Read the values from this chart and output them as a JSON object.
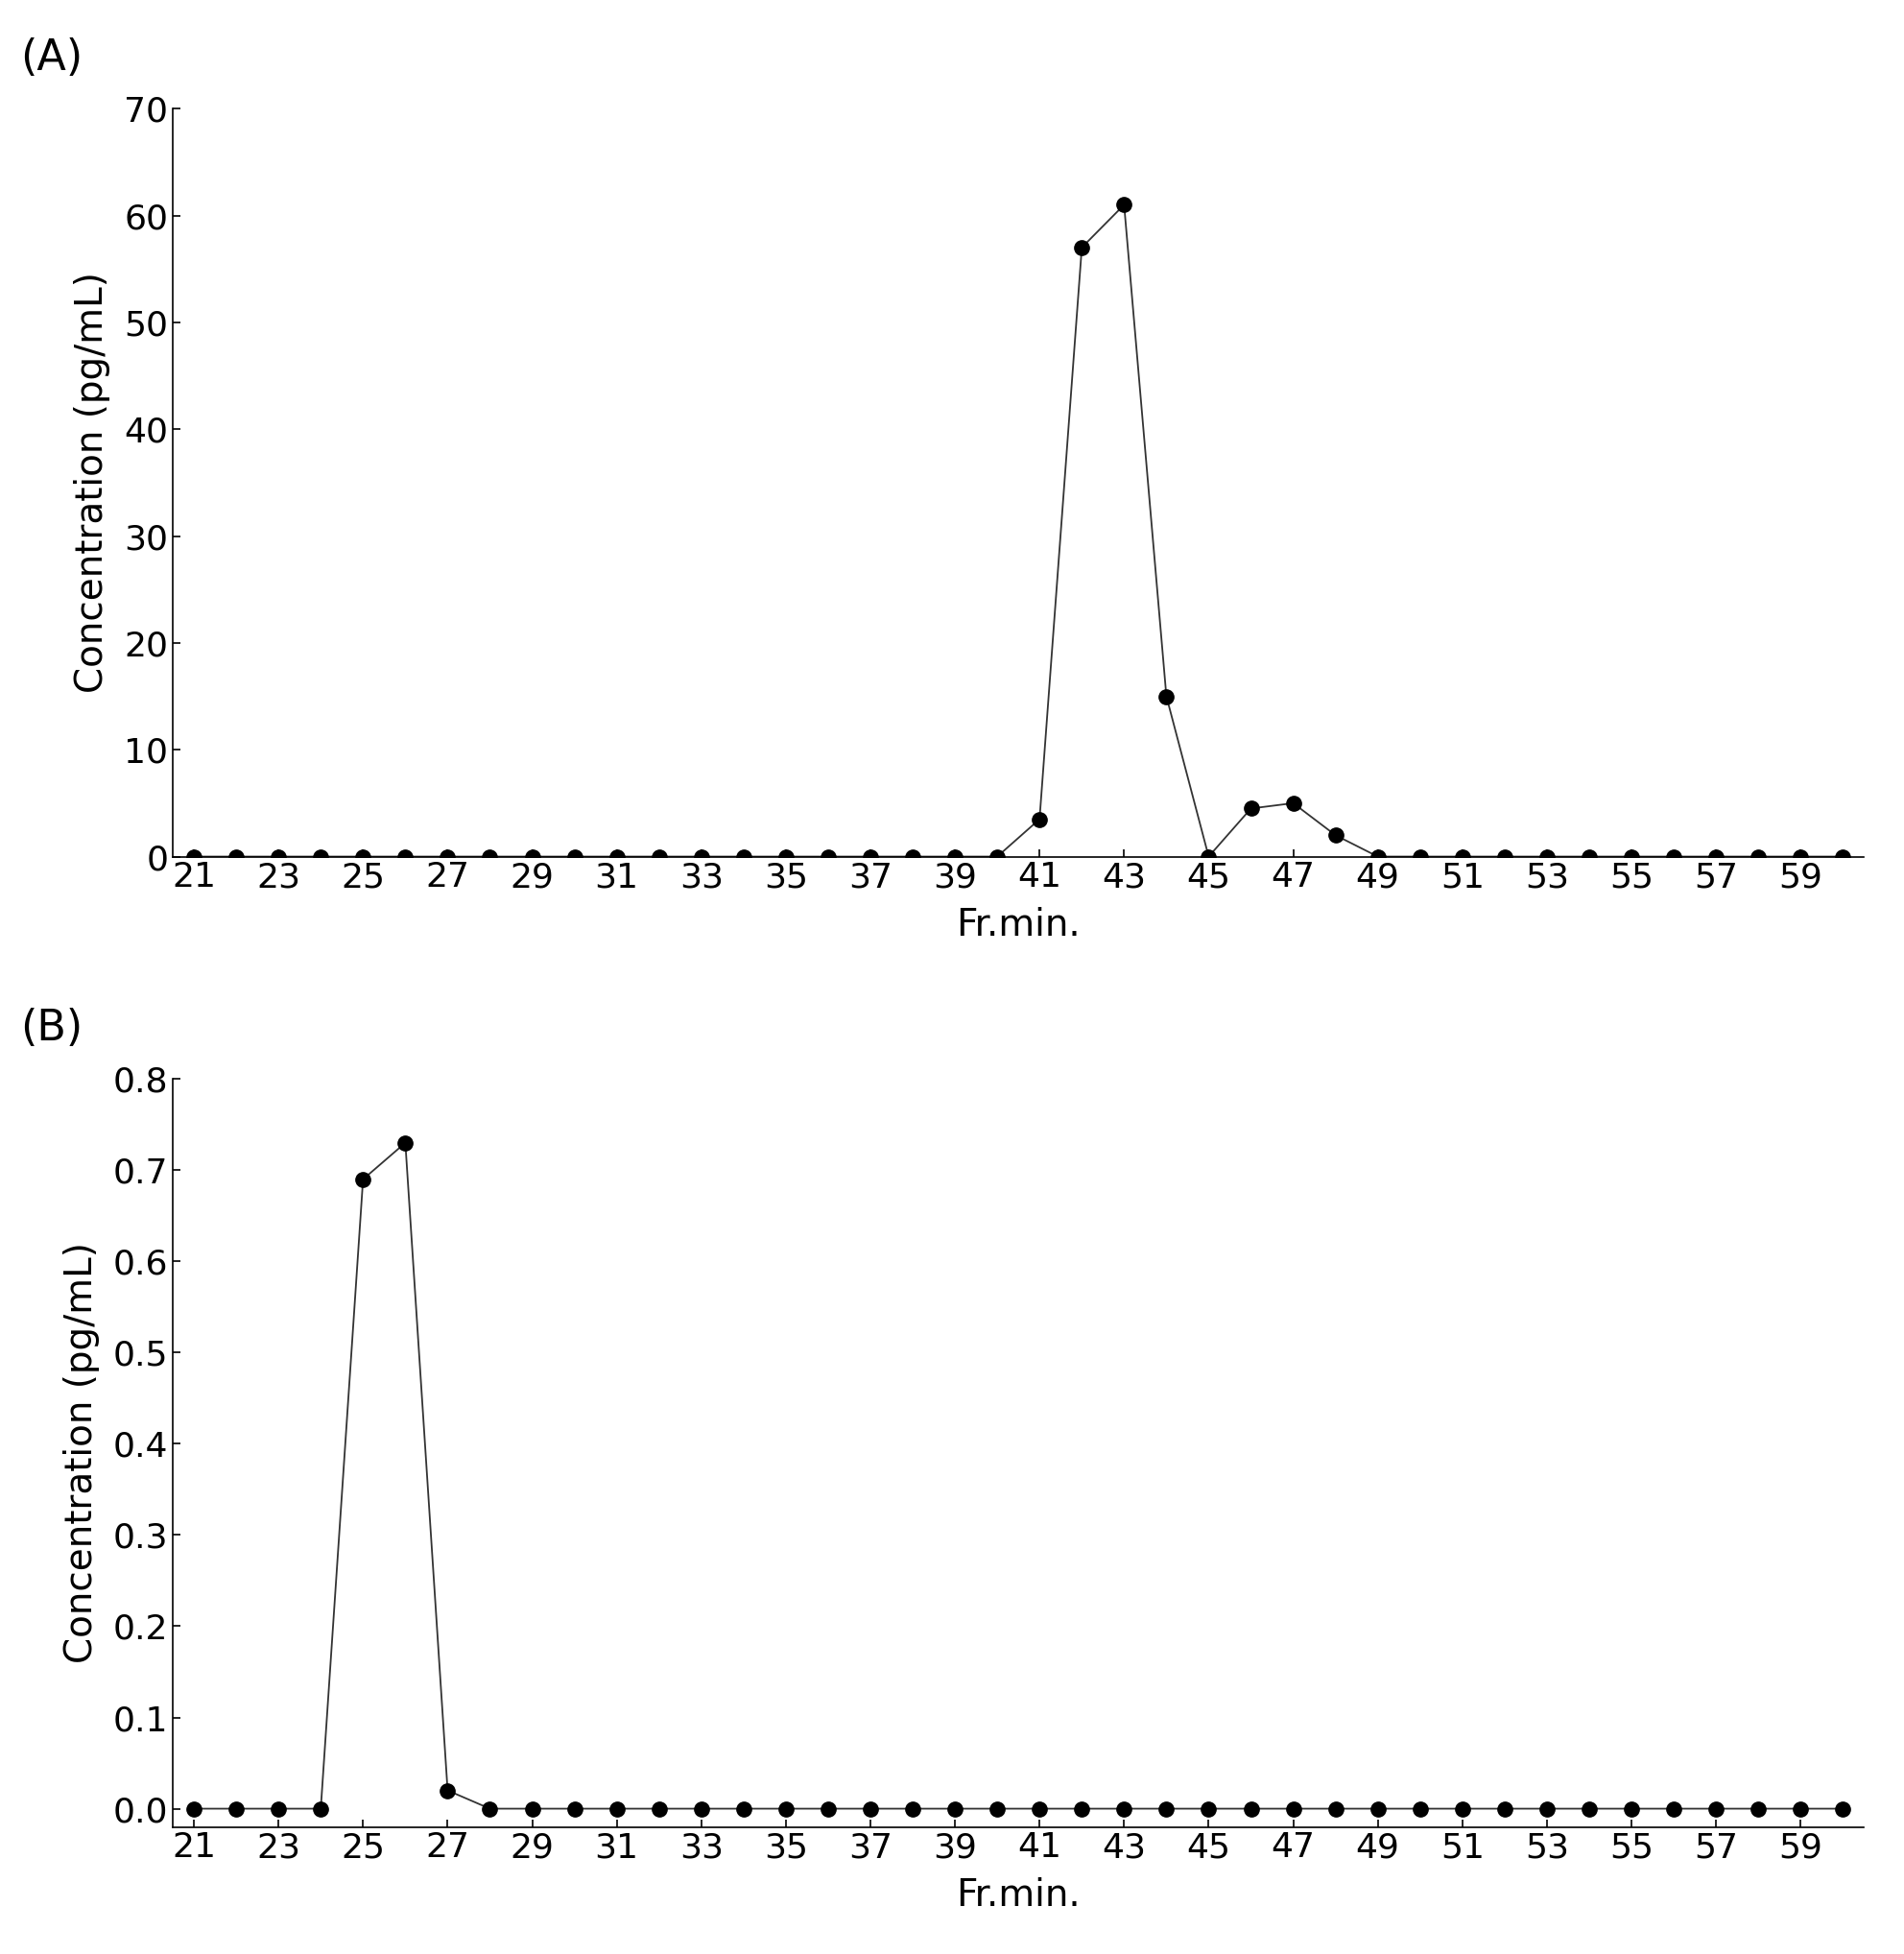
{
  "panel_A": {
    "label": "(A)",
    "x_values": [
      21,
      22,
      23,
      24,
      25,
      26,
      27,
      28,
      29,
      30,
      31,
      32,
      33,
      34,
      35,
      36,
      37,
      38,
      39,
      40,
      41,
      42,
      43,
      44,
      45,
      46,
      47,
      48,
      49,
      50,
      51,
      52,
      53,
      54,
      55,
      56,
      57,
      58,
      59,
      60
    ],
    "y_values": [
      0,
      0,
      0,
      0,
      0,
      0,
      0,
      0,
      0,
      0,
      0,
      0,
      0,
      0,
      0,
      0,
      0,
      0,
      0,
      0,
      3.5,
      57,
      61,
      15,
      0,
      4.5,
      5,
      2,
      0,
      0,
      0,
      0,
      0,
      0,
      0,
      0,
      0,
      0,
      0,
      0
    ],
    "xlabel": "Fr.min.",
    "ylabel": "Concentration (pg/mL)",
    "ylim": [
      0,
      70
    ],
    "yticks": [
      0,
      10,
      20,
      30,
      40,
      50,
      60,
      70
    ],
    "xticks": [
      21,
      23,
      25,
      27,
      29,
      31,
      33,
      35,
      37,
      39,
      41,
      43,
      45,
      47,
      49,
      51,
      53,
      55,
      57,
      59
    ],
    "xlim": [
      20.5,
      60.5
    ]
  },
  "panel_B": {
    "label": "(B)",
    "x_values": [
      21,
      22,
      23,
      24,
      25,
      26,
      27,
      28,
      29,
      30,
      31,
      32,
      33,
      34,
      35,
      36,
      37,
      38,
      39,
      40,
      41,
      42,
      43,
      44,
      45,
      46,
      47,
      48,
      49,
      50,
      51,
      52,
      53,
      54,
      55,
      56,
      57,
      58,
      59,
      60
    ],
    "y_values": [
      0,
      0,
      0,
      0,
      0.69,
      0.73,
      0.02,
      0,
      0,
      0,
      0,
      0,
      0,
      0,
      0,
      0,
      0,
      0,
      0,
      0,
      0,
      0,
      0,
      0,
      0,
      0,
      0,
      0,
      0,
      0,
      0,
      0,
      0,
      0,
      0,
      0,
      0,
      0,
      0,
      0
    ],
    "xlabel": "Fr.min.",
    "ylabel": "Concentration (pg/mL)",
    "ylim": [
      -0.02,
      0.8
    ],
    "yticks": [
      0.0,
      0.1,
      0.2,
      0.3,
      0.4,
      0.5,
      0.6,
      0.7,
      0.8
    ],
    "xticks": [
      21,
      23,
      25,
      27,
      29,
      31,
      33,
      35,
      37,
      39,
      41,
      43,
      45,
      47,
      49,
      51,
      53,
      55,
      57,
      59
    ],
    "xlim": [
      20.5,
      60.5
    ]
  },
  "marker_color": "#000000",
  "line_color": "#333333",
  "background_color": "#ffffff",
  "marker_size": 11,
  "line_width": 1.3,
  "label_fontsize": 28,
  "tick_fontsize": 26,
  "panel_label_fontsize": 32
}
